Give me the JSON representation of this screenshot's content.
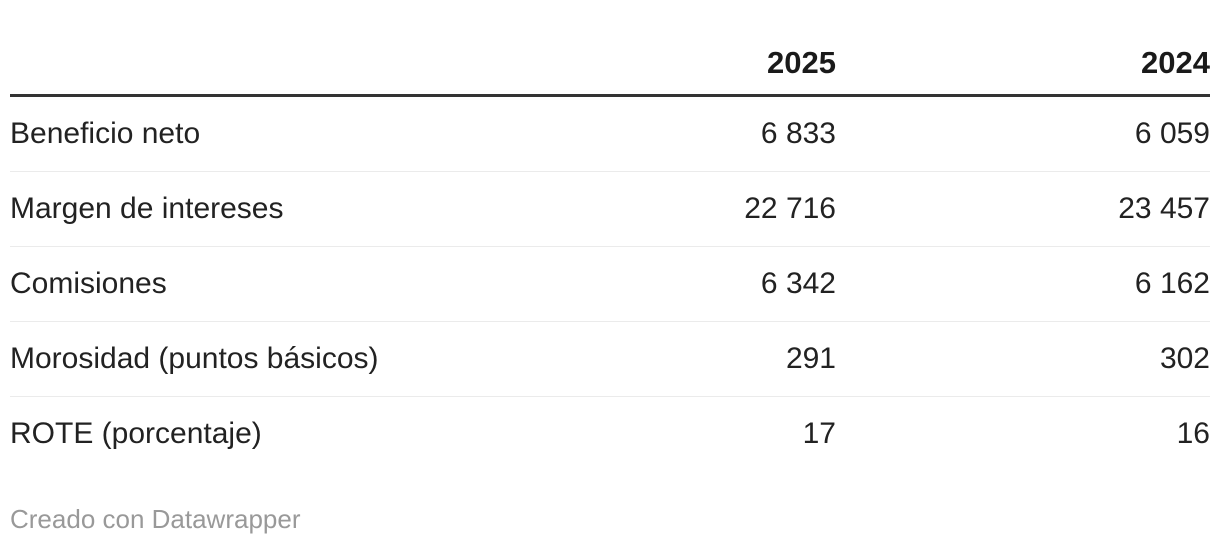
{
  "table": {
    "columns": [
      "",
      "2025",
      "2024"
    ],
    "rows": [
      {
        "label": "Beneficio neto",
        "v2025": "6 833",
        "v2024": "6 059"
      },
      {
        "label": "Margen de intereses",
        "v2025": "22 716",
        "v2024": "23 457"
      },
      {
        "label": "Comisiones",
        "v2025": "6 342",
        "v2024": "6 162"
      },
      {
        "label": "Morosidad (puntos básicos)",
        "v2025": "291",
        "v2024": "302"
      },
      {
        "label": "ROTE (porcentaje)",
        "v2025": "17",
        "v2024": "16"
      }
    ]
  },
  "footer": {
    "credit": "Creado con Datawrapper"
  },
  "colors": {
    "text": "#222222",
    "header_text": "#1a1a1a",
    "header_rule": "#333333",
    "row_divider": "#ebebeb",
    "footer_text": "#999999",
    "background": "#ffffff"
  },
  "chart_data": {
    "type": "table",
    "title": "",
    "columns": [
      "",
      "2025",
      "2024"
    ],
    "rows": [
      [
        "Beneficio neto",
        "6 833",
        "6 059"
      ],
      [
        "Margen de intereses",
        "22 716",
        "23 457"
      ],
      [
        "Comisiones",
        "6 342",
        "6 162"
      ],
      [
        "Morosidad (puntos básicos)",
        "291",
        "302"
      ],
      [
        "ROTE (porcentaje)",
        "17",
        "16"
      ]
    ],
    "numeric_series": [
      {
        "name": "2025",
        "values": [
          6833,
          22716,
          6342,
          291,
          17
        ]
      },
      {
        "name": "2024",
        "values": [
          6059,
          23457,
          6162,
          302,
          16
        ]
      }
    ],
    "row_labels": [
      "Beneficio neto",
      "Margen de intereses",
      "Comisiones",
      "Morosidad (puntos básicos)",
      "ROTE (porcentaje)"
    ],
    "layout_hints": {
      "numeric_columns_alignment": "right",
      "header_rule": "thick",
      "gridlines": "horizontal-light",
      "credit_position": "bottom-left"
    }
  }
}
